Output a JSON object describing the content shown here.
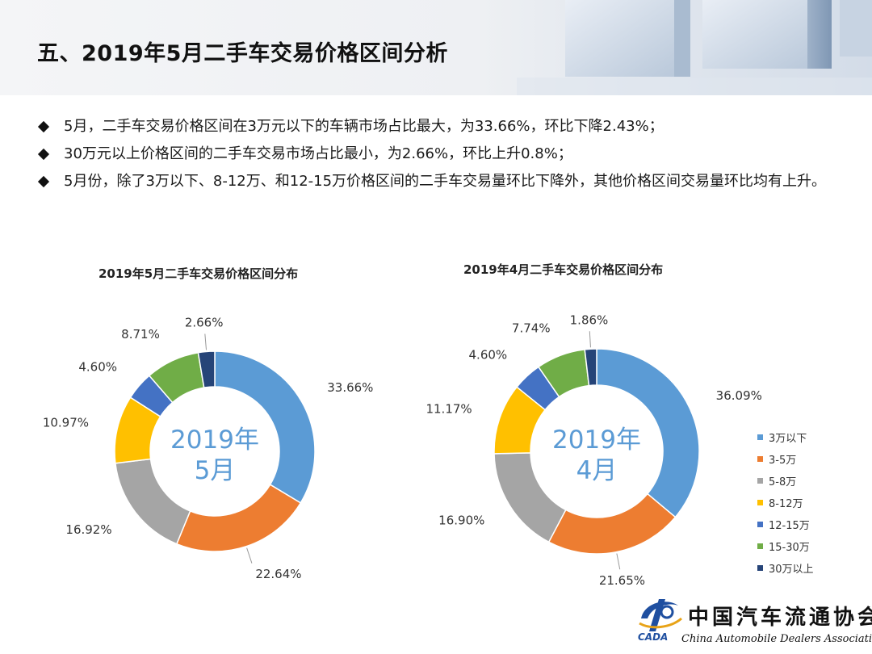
{
  "header": {
    "title": "五、2019年5月二手车交易价格区间分析"
  },
  "bullets": [
    "5月，二手车交易价格区间在3万元以下的车辆市场占比最大，为33.66%，环比下降2.43%；",
    "30万元以上价格区间的二手车交易市场占比最小，为2.66%，环比上升0.8%；",
    "5月份，除了3万以下、8-12万、和12-15万价格区间的二手车交易量环比下降外，其他价格区间交易量环比均有上升。"
  ],
  "legend": [
    {
      "label": "3万以下",
      "color": "#5b9bd5"
    },
    {
      "label": "3-5万",
      "color": "#ed7d31"
    },
    {
      "label": "5-8万",
      "color": "#a5a5a5"
    },
    {
      "label": "8-12万",
      "color": "#ffc000"
    },
    {
      "label": "12-15万",
      "color": "#4472c4"
    },
    {
      "label": "15-30万",
      "color": "#70ad47"
    },
    {
      "label": "30万以上",
      "color": "#264478"
    }
  ],
  "logo": {
    "cn": "中国汽车流通协会",
    "en": "China Automobile Dealers Association",
    "abbr": "CADA"
  },
  "chart_data": [
    {
      "type": "pie",
      "title": "2019年5月二手车交易价格区间分布",
      "center_label": [
        "2019年",
        "5月"
      ],
      "categories": [
        "3万以下",
        "3-5万",
        "5-8万",
        "8-12万",
        "12-15万",
        "15-30万",
        "30万以上"
      ],
      "values": [
        33.66,
        22.64,
        16.92,
        10.97,
        4.6,
        8.71,
        2.66
      ],
      "value_labels": [
        "33.66%",
        "22.64%",
        "16.92%",
        "10.97%",
        "4.60%",
        "8.71%",
        "2.66%"
      ],
      "colors": [
        "#5b9bd5",
        "#ed7d31",
        "#a5a5a5",
        "#ffc000",
        "#4472c4",
        "#70ad47",
        "#264478"
      ]
    },
    {
      "type": "pie",
      "title": "2019年4月二手车交易价格区间分布",
      "center_label": [
        "2019年",
        "4月"
      ],
      "categories": [
        "3万以下",
        "3-5万",
        "5-8万",
        "8-12万",
        "12-15万",
        "15-30万",
        "30万以上"
      ],
      "values": [
        36.09,
        21.65,
        16.9,
        11.17,
        4.6,
        7.74,
        1.86
      ],
      "value_labels": [
        "36.09%",
        "21.65%",
        "16.90%",
        "11.17%",
        "4.60%",
        "7.74%",
        "1.86%"
      ],
      "colors": [
        "#5b9bd5",
        "#ed7d31",
        "#a5a5a5",
        "#ffc000",
        "#4472c4",
        "#70ad47",
        "#264478"
      ]
    }
  ]
}
